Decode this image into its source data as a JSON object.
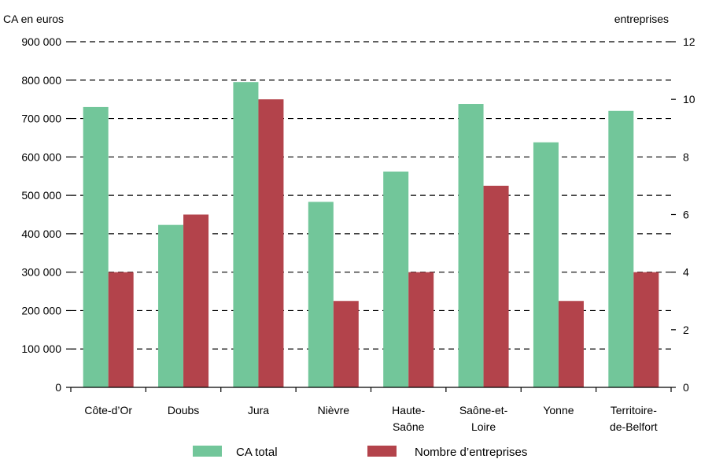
{
  "chart_data": {
    "type": "bar",
    "y_left_label": "CA en euros",
    "y_right_label": "entreprises",
    "categories": [
      [
        "Côte-d’Or"
      ],
      [
        "Doubs"
      ],
      [
        "Jura"
      ],
      [
        "Nièvre"
      ],
      [
        "Haute-",
        "Saône"
      ],
      [
        "Saône-et-",
        "Loire"
      ],
      [
        "Yonne"
      ],
      [
        "Territoire-",
        "de-Belfort"
      ]
    ],
    "series": [
      {
        "name": "CA total",
        "axis": "left",
        "color": "#72c69a",
        "values": [
          730000,
          423000,
          795000,
          483000,
          562000,
          738000,
          638000,
          720000
        ]
      },
      {
        "name": "Nombre d’entreprises",
        "axis": "right",
        "color": "#b3434b",
        "values": [
          4,
          6,
          10,
          3,
          4,
          7,
          3,
          4
        ]
      }
    ],
    "ylim_left": [
      0,
      900000
    ],
    "ylim_right": [
      0,
      12
    ],
    "y_left_ticks": [
      "0",
      "100 000",
      "200 000",
      "300 000",
      "400 000",
      "500 000",
      "600 000",
      "700 000",
      "800 000",
      "900 000"
    ],
    "y_right_ticks": [
      "0",
      "2",
      "4",
      "6",
      "8",
      "10",
      "12"
    ],
    "grid": "dashed-horizontal",
    "legend_position": "bottom"
  }
}
